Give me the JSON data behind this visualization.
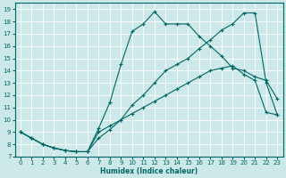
{
  "background_color": "#cce8e8",
  "grid_color": "#ffffff",
  "line_color": "#006666",
  "xlabel": "Humidex (Indice chaleur)",
  "ylabel": "",
  "xlim": [
    -0.5,
    23.5
  ],
  "ylim": [
    7,
    19.5
  ],
  "xticks": [
    0,
    1,
    2,
    3,
    4,
    5,
    6,
    7,
    8,
    9,
    10,
    11,
    12,
    13,
    14,
    15,
    16,
    17,
    18,
    19,
    20,
    21,
    22,
    23
  ],
  "yticks": [
    7,
    8,
    9,
    10,
    11,
    12,
    13,
    14,
    15,
    16,
    17,
    18,
    19
  ],
  "curve1_x": [
    0,
    1,
    2,
    3,
    4,
    5,
    6,
    7,
    8,
    9,
    10,
    11,
    12,
    13,
    14,
    15,
    16,
    17,
    18,
    19,
    20,
    21,
    22,
    23
  ],
  "curve1_y": [
    9.0,
    8.5,
    8.0,
    7.7,
    7.5,
    7.4,
    7.4,
    9.0,
    9.5,
    10.0,
    10.5,
    11.0,
    11.5,
    12.0,
    12.5,
    13.0,
    13.5,
    14.0,
    14.2,
    14.4,
    13.7,
    13.2,
    10.6,
    10.4
  ],
  "curve2_x": [
    0,
    1,
    2,
    3,
    4,
    5,
    6,
    7,
    8,
    9,
    10,
    11,
    12,
    13,
    14,
    15,
    16,
    17,
    18,
    19,
    20,
    21,
    22,
    23
  ],
  "curve2_y": [
    9.0,
    8.5,
    8.0,
    7.7,
    7.5,
    7.4,
    7.4,
    8.5,
    9.2,
    10.0,
    11.2,
    12.0,
    13.0,
    14.0,
    14.5,
    15.0,
    15.8,
    16.5,
    17.3,
    17.8,
    18.7,
    18.7,
    13.0,
    10.4
  ],
  "curve3_x": [
    0,
    1,
    2,
    3,
    4,
    5,
    6,
    7,
    8,
    9,
    10,
    11,
    12,
    13,
    14,
    15,
    16,
    17,
    18,
    19,
    20,
    21,
    22,
    23
  ],
  "curve3_y": [
    9.0,
    8.5,
    8.0,
    7.7,
    7.5,
    7.4,
    7.4,
    9.3,
    11.4,
    14.5,
    17.2,
    17.8,
    18.8,
    17.8,
    17.8,
    17.8,
    16.8,
    16.0,
    15.2,
    14.2,
    14.0,
    13.5,
    13.2,
    11.7
  ],
  "figwidth": 3.2,
  "figheight": 2.0,
  "dpi": 100
}
